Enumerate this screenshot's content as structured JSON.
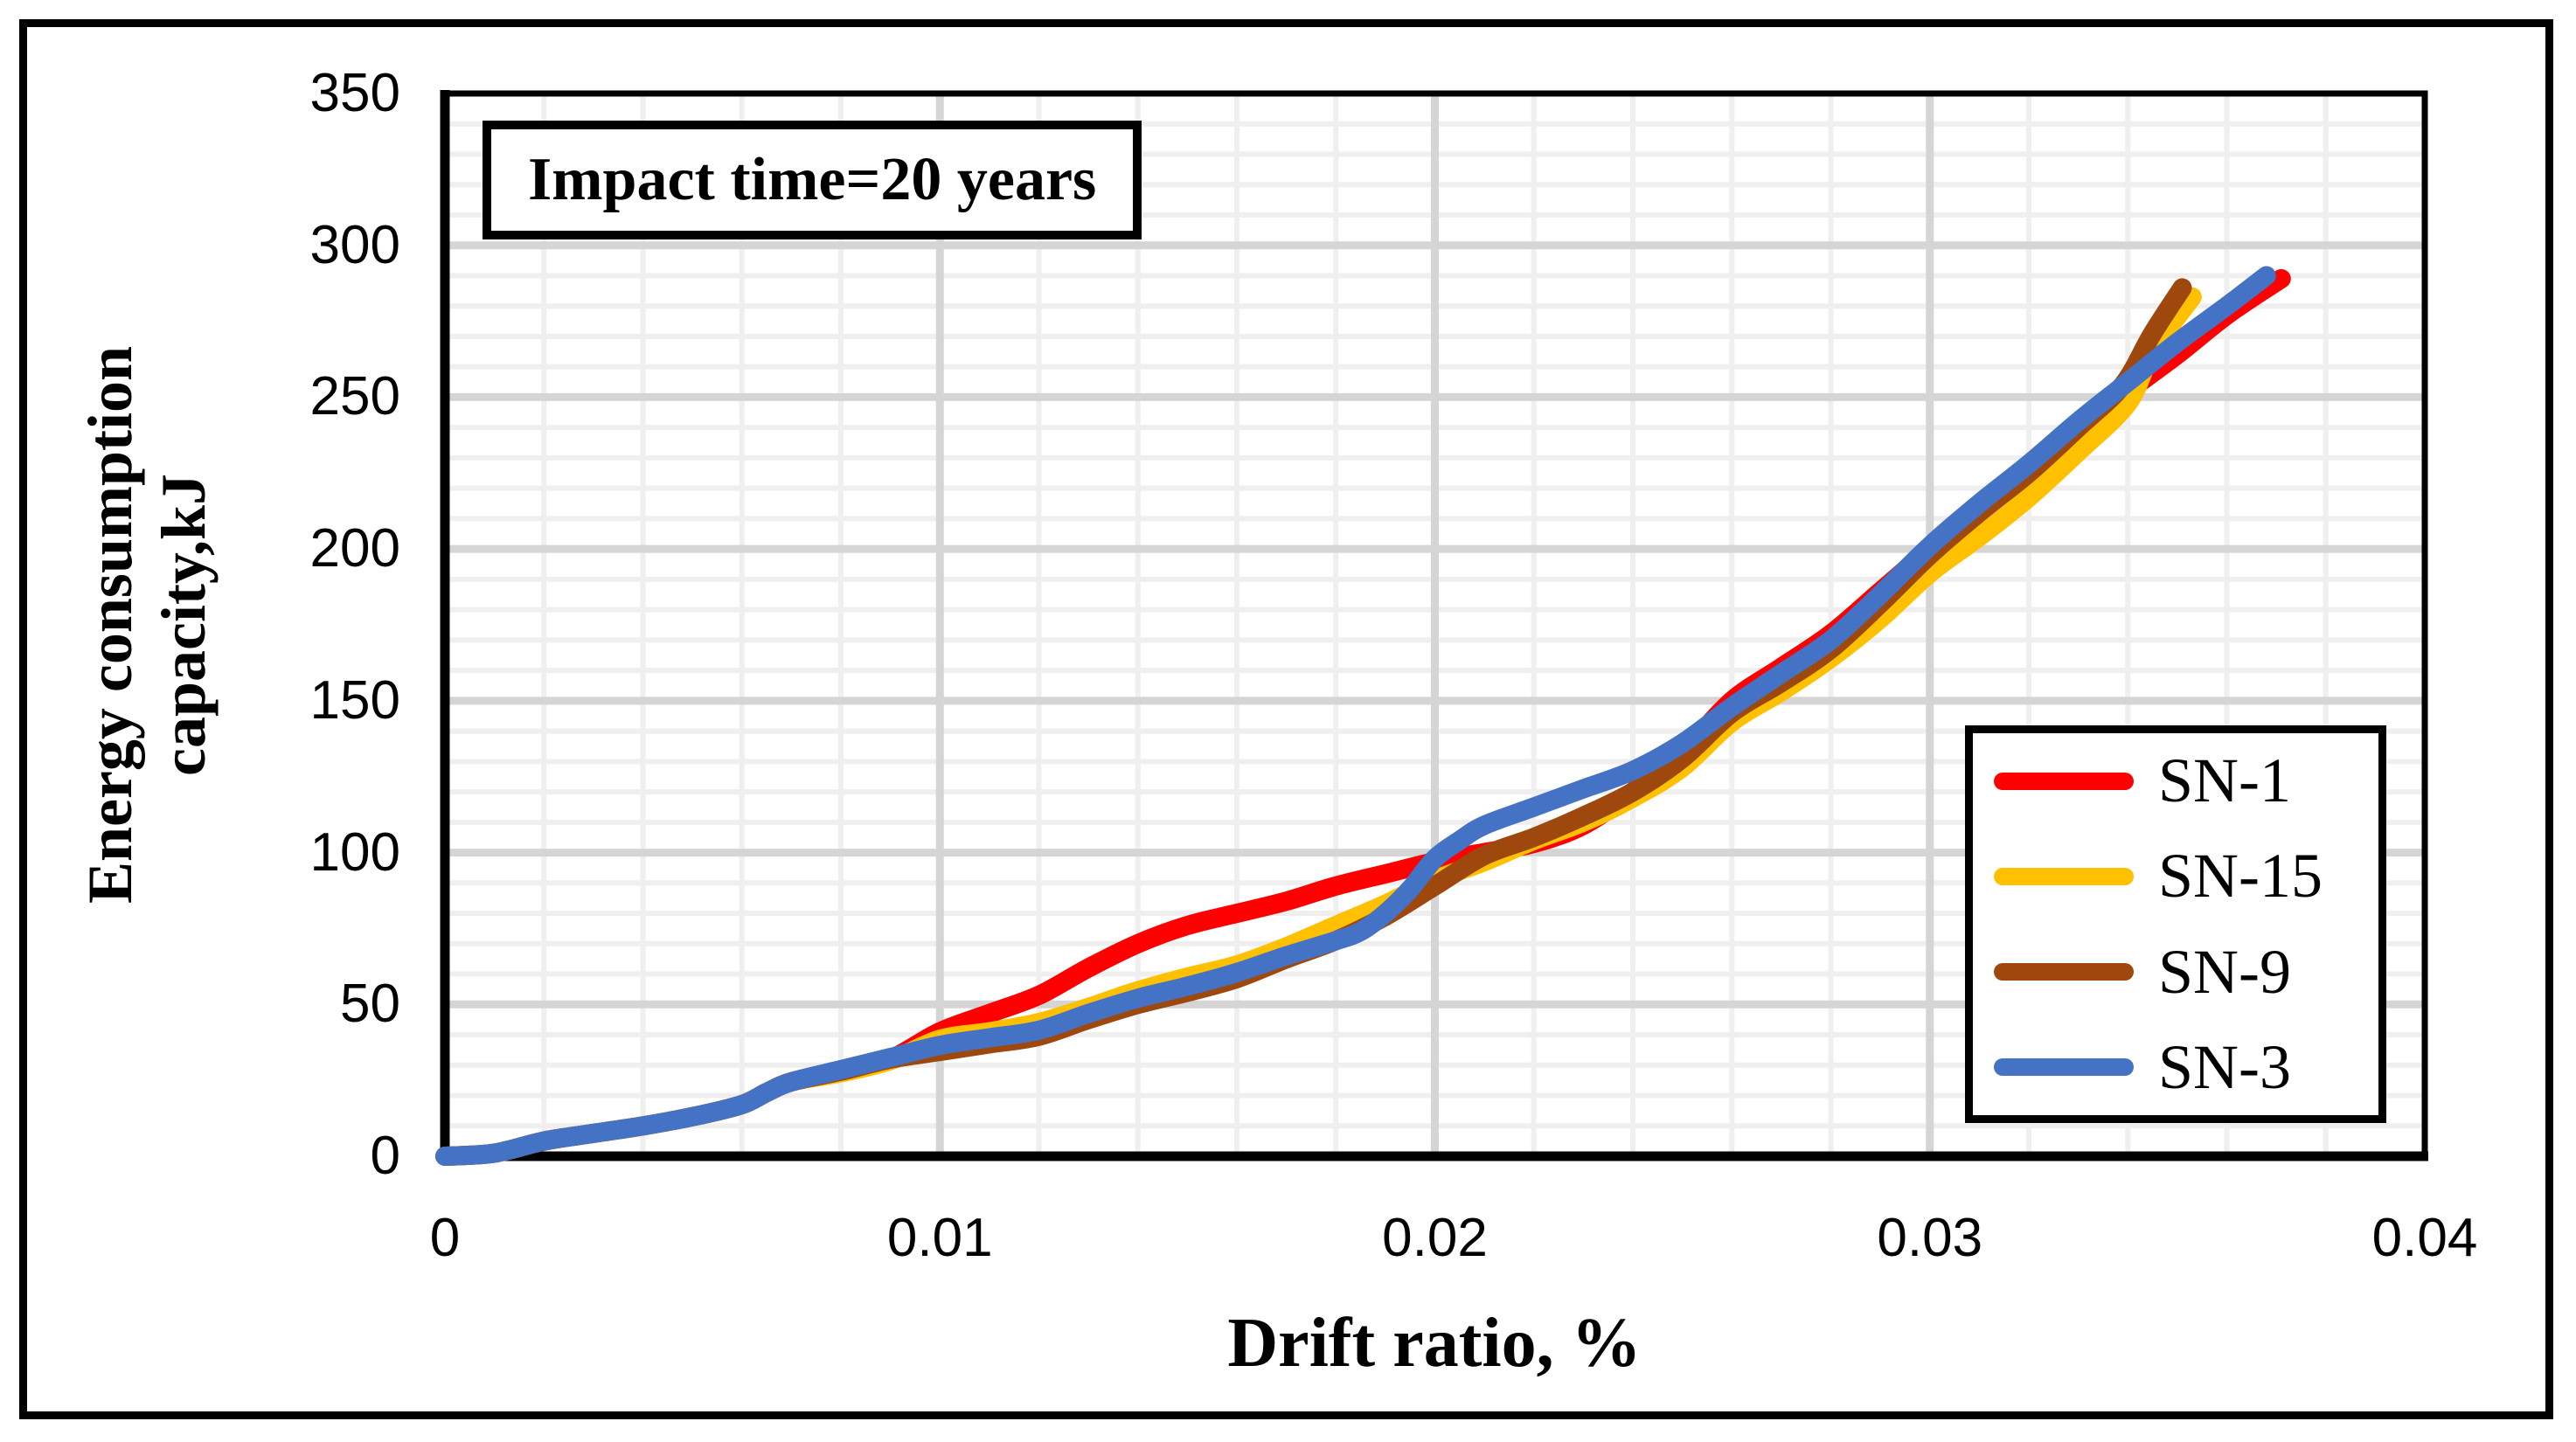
{
  "chart_data": {
    "type": "line",
    "annotation": "Impact time=20 years",
    "xlabel": "Drift ratio, %",
    "ylabel_line1": "Energy consumption",
    "ylabel_line2": "capacity,kJ",
    "xlim": [
      0,
      0.04
    ],
    "ylim": [
      0,
      350
    ],
    "x_ticks": [
      0,
      0.01,
      0.02,
      0.03,
      0.04
    ],
    "x_tick_labels": [
      "0",
      "0.01",
      "0.02",
      "0.03",
      "0.04"
    ],
    "y_ticks": [
      0,
      50,
      100,
      150,
      200,
      250,
      300,
      350
    ],
    "y_tick_labels": [
      "0",
      "50",
      "100",
      "150",
      "200",
      "250",
      "300",
      "350"
    ],
    "x_minor_step": 0.002,
    "y_minor_step": 10,
    "grid": {
      "major_color": "#d5d5d5",
      "minor_color": "#efefef",
      "on": true
    },
    "legend_position": "right-middle",
    "series": [
      {
        "name": "SN-1",
        "color": "#ff0000",
        "points": [
          [
            0,
            0
          ],
          [
            0.001,
            1
          ],
          [
            0.002,
            5
          ],
          [
            0.003,
            7.5
          ],
          [
            0.004,
            10
          ],
          [
            0.005,
            13
          ],
          [
            0.006,
            17
          ],
          [
            0.0065,
            21
          ],
          [
            0.007,
            24.5
          ],
          [
            0.008,
            28
          ],
          [
            0.009,
            32
          ],
          [
            0.01,
            41
          ],
          [
            0.011,
            47
          ],
          [
            0.012,
            53
          ],
          [
            0.013,
            62
          ],
          [
            0.014,
            70
          ],
          [
            0.015,
            76
          ],
          [
            0.016,
            80
          ],
          [
            0.017,
            84
          ],
          [
            0.018,
            89
          ],
          [
            0.019,
            93
          ],
          [
            0.02,
            97
          ],
          [
            0.021,
            100
          ],
          [
            0.022,
            103
          ],
          [
            0.023,
            109
          ],
          [
            0.024,
            120
          ],
          [
            0.025,
            133
          ],
          [
            0.026,
            150
          ],
          [
            0.027,
            161
          ],
          [
            0.028,
            172
          ],
          [
            0.029,
            186
          ],
          [
            0.03,
            200
          ],
          [
            0.031,
            213
          ],
          [
            0.032,
            226
          ],
          [
            0.033,
            240
          ],
          [
            0.034,
            252
          ],
          [
            0.035,
            264
          ],
          [
            0.036,
            277
          ],
          [
            0.0371,
            289
          ]
        ]
      },
      {
        "name": "SN-15",
        "color": "#ffc000",
        "points": [
          [
            0,
            0
          ],
          [
            0.001,
            1
          ],
          [
            0.002,
            5
          ],
          [
            0.003,
            7.5
          ],
          [
            0.004,
            10
          ],
          [
            0.005,
            13
          ],
          [
            0.006,
            17
          ],
          [
            0.0065,
            21
          ],
          [
            0.007,
            24.5
          ],
          [
            0.008,
            27.5
          ],
          [
            0.009,
            31.5
          ],
          [
            0.01,
            38.5
          ],
          [
            0.011,
            41
          ],
          [
            0.012,
            44
          ],
          [
            0.013,
            49
          ],
          [
            0.014,
            54.5
          ],
          [
            0.015,
            59
          ],
          [
            0.016,
            63
          ],
          [
            0.017,
            69
          ],
          [
            0.018,
            76
          ],
          [
            0.019,
            83
          ],
          [
            0.02,
            91
          ],
          [
            0.021,
            97
          ],
          [
            0.022,
            104
          ],
          [
            0.023,
            110
          ],
          [
            0.024,
            118
          ],
          [
            0.025,
            128
          ],
          [
            0.026,
            143
          ],
          [
            0.027,
            153
          ],
          [
            0.028,
            164
          ],
          [
            0.029,
            177
          ],
          [
            0.03,
            192
          ],
          [
            0.031,
            204
          ],
          [
            0.032,
            217
          ],
          [
            0.033,
            232
          ],
          [
            0.034,
            248
          ],
          [
            0.0345,
            265
          ],
          [
            0.0353,
            283
          ]
        ]
      },
      {
        "name": "SN-9",
        "color": "#9e480e",
        "points": [
          [
            0,
            0
          ],
          [
            0.001,
            1
          ],
          [
            0.002,
            5
          ],
          [
            0.003,
            7.5
          ],
          [
            0.004,
            10
          ],
          [
            0.005,
            13
          ],
          [
            0.006,
            17
          ],
          [
            0.0065,
            21
          ],
          [
            0.007,
            24.5
          ],
          [
            0.008,
            28
          ],
          [
            0.009,
            32
          ],
          [
            0.01,
            34.5
          ],
          [
            0.011,
            37
          ],
          [
            0.012,
            39.5
          ],
          [
            0.013,
            45
          ],
          [
            0.014,
            50
          ],
          [
            0.015,
            54
          ],
          [
            0.016,
            58.5
          ],
          [
            0.017,
            65
          ],
          [
            0.018,
            71
          ],
          [
            0.019,
            79
          ],
          [
            0.02,
            89
          ],
          [
            0.021,
            99
          ],
          [
            0.022,
            105
          ],
          [
            0.023,
            112
          ],
          [
            0.024,
            120
          ],
          [
            0.025,
            131
          ],
          [
            0.026,
            146
          ],
          [
            0.027,
            156
          ],
          [
            0.028,
            167
          ],
          [
            0.029,
            182
          ],
          [
            0.03,
            198
          ],
          [
            0.031,
            212
          ],
          [
            0.032,
            225
          ],
          [
            0.033,
            240
          ],
          [
            0.0339,
            254
          ],
          [
            0.0345,
            271
          ],
          [
            0.0351,
            286
          ]
        ]
      },
      {
        "name": "SN-3",
        "color": "#4472c4",
        "points": [
          [
            0,
            0
          ],
          [
            0.001,
            1
          ],
          [
            0.002,
            5
          ],
          [
            0.003,
            7.5
          ],
          [
            0.004,
            10
          ],
          [
            0.005,
            13
          ],
          [
            0.006,
            17
          ],
          [
            0.0065,
            21
          ],
          [
            0.007,
            24.5
          ],
          [
            0.008,
            28.5
          ],
          [
            0.009,
            32.5
          ],
          [
            0.01,
            36.5
          ],
          [
            0.011,
            39
          ],
          [
            0.012,
            41.5
          ],
          [
            0.013,
            47
          ],
          [
            0.014,
            52
          ],
          [
            0.015,
            56
          ],
          [
            0.016,
            60.5
          ],
          [
            0.017,
            66
          ],
          [
            0.018,
            71
          ],
          [
            0.0185,
            74
          ],
          [
            0.019,
            80
          ],
          [
            0.0195,
            88
          ],
          [
            0.02,
            98
          ],
          [
            0.0205,
            104
          ],
          [
            0.021,
            109
          ],
          [
            0.022,
            115
          ],
          [
            0.023,
            121
          ],
          [
            0.024,
            127
          ],
          [
            0.025,
            136
          ],
          [
            0.026,
            148
          ],
          [
            0.027,
            159
          ],
          [
            0.028,
            170
          ],
          [
            0.029,
            185
          ],
          [
            0.03,
            201
          ],
          [
            0.031,
            215
          ],
          [
            0.032,
            228
          ],
          [
            0.033,
            242
          ],
          [
            0.034,
            255
          ],
          [
            0.035,
            268
          ],
          [
            0.036,
            280
          ],
          [
            0.0368,
            290
          ]
        ]
      }
    ]
  }
}
